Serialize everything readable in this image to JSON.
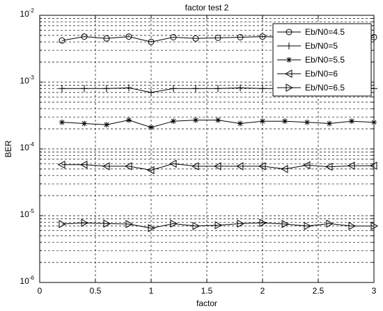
{
  "chart_data": {
    "type": "line",
    "title": "factor test 2",
    "xlabel": "factor",
    "ylabel": "BER",
    "xlim": [
      0,
      3
    ],
    "ylim": [
      1e-06,
      0.01
    ],
    "yscale": "log",
    "grid": true,
    "legend_position": "top-right",
    "x_ticks": [
      "0",
      "0.5",
      "1",
      "1.5",
      "2",
      "2.5",
      "3"
    ],
    "y_ticks": [
      {
        "base": "10",
        "exp": "-6"
      },
      {
        "base": "10",
        "exp": "-5"
      },
      {
        "base": "10",
        "exp": "-4"
      },
      {
        "base": "10",
        "exp": "-3"
      },
      {
        "base": "10",
        "exp": "-2"
      }
    ],
    "x": [
      0.2,
      0.4,
      0.6,
      0.8,
      1.0,
      1.2,
      1.4,
      1.6,
      1.8,
      2.0,
      2.2,
      2.4,
      2.6,
      2.8,
      3.0
    ],
    "series": [
      {
        "name": "Eb/N0=4.5",
        "marker": "circle",
        "values": [
          0.0042,
          0.0048,
          0.0045,
          0.0048,
          0.004,
          0.0047,
          0.0045,
          0.0046,
          0.0047,
          0.0048,
          0.0047,
          0.0047,
          0.0047,
          0.0048,
          0.0047
        ]
      },
      {
        "name": "Eb/N0=5",
        "marker": "plus",
        "values": [
          0.0008,
          0.0008,
          0.0008,
          0.00082,
          0.0007,
          0.0008,
          0.0008,
          0.0008,
          0.00082,
          0.0008,
          0.0008,
          0.0008,
          0.0008,
          0.0008,
          0.0008
        ]
      },
      {
        "name": "Eb/N0=5.5",
        "marker": "star",
        "values": [
          0.00025,
          0.00024,
          0.00023,
          0.00027,
          0.00021,
          0.00026,
          0.00027,
          0.00027,
          0.00024,
          0.00026,
          0.00026,
          0.00025,
          0.00024,
          0.00026,
          0.00025
        ]
      },
      {
        "name": "Eb/N0=6",
        "marker": "triangle-left",
        "values": [
          5.8e-05,
          5.8e-05,
          5.5e-05,
          5.5e-05,
          4.8e-05,
          6e-05,
          5.5e-05,
          5.5e-05,
          5.5e-05,
          5.5e-05,
          5e-05,
          5.7e-05,
          5.4e-05,
          5.6e-05,
          5.6e-05
        ]
      },
      {
        "name": "Eb/N0=6.5",
        "marker": "triangle-right",
        "values": [
          7.5e-06,
          7.8e-06,
          7.6e-06,
          7.5e-06,
          6.5e-06,
          7.6e-06,
          7e-06,
          7.2e-06,
          7.6e-06,
          7.8e-06,
          7.5e-06,
          7e-06,
          7.6e-06,
          7e-06,
          7e-06
        ]
      }
    ]
  }
}
